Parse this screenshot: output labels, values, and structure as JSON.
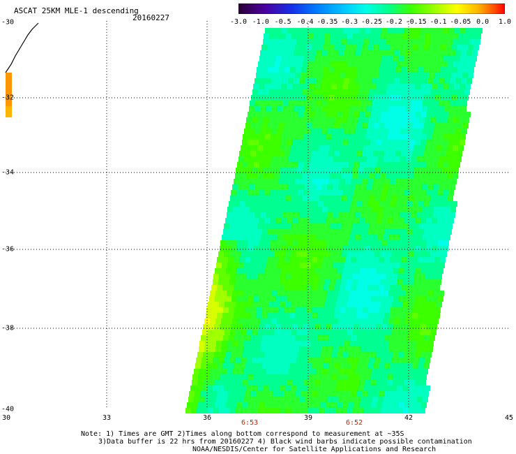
{
  "header": {
    "title": "ASCAT 25KM MLE-1 descending",
    "date": "20160227"
  },
  "colorbar": {
    "labels": [
      "-3.0",
      "-1.0",
      "-0.5",
      "-0.4",
      "-0.35",
      "-0.3",
      "-0.25",
      "-0.2",
      "-0.15",
      "-0.1",
      "-0.05",
      "0.0",
      "1.0"
    ],
    "colors": [
      "#2a0033",
      "#4b00a0",
      "#1530e8",
      "#0080ff",
      "#00c8ff",
      "#00ffe6",
      "#00ff90",
      "#3cff00",
      "#a0ff00",
      "#ffff00",
      "#ffb400",
      "#ff5000",
      "#ff0000"
    ]
  },
  "axes": {
    "lat_labels": [
      "-30",
      "-32",
      "-34",
      "-36",
      "-38",
      "-40"
    ],
    "lon_labels": [
      "30",
      "33",
      "36",
      "39",
      "42",
      "45"
    ]
  },
  "times": [
    "6:53",
    "6:52"
  ],
  "notes": {
    "line1": "Note: 1) Times are GMT 2)Times along bottom correspond to measurement at ~35S",
    "line2": "3)Data buffer is 22 hrs from 20160227 4) Black wind barbs indicate possible contamination",
    "line3": "NOAA/NESDIS/Center for Satellite Applications and Research"
  }
}
